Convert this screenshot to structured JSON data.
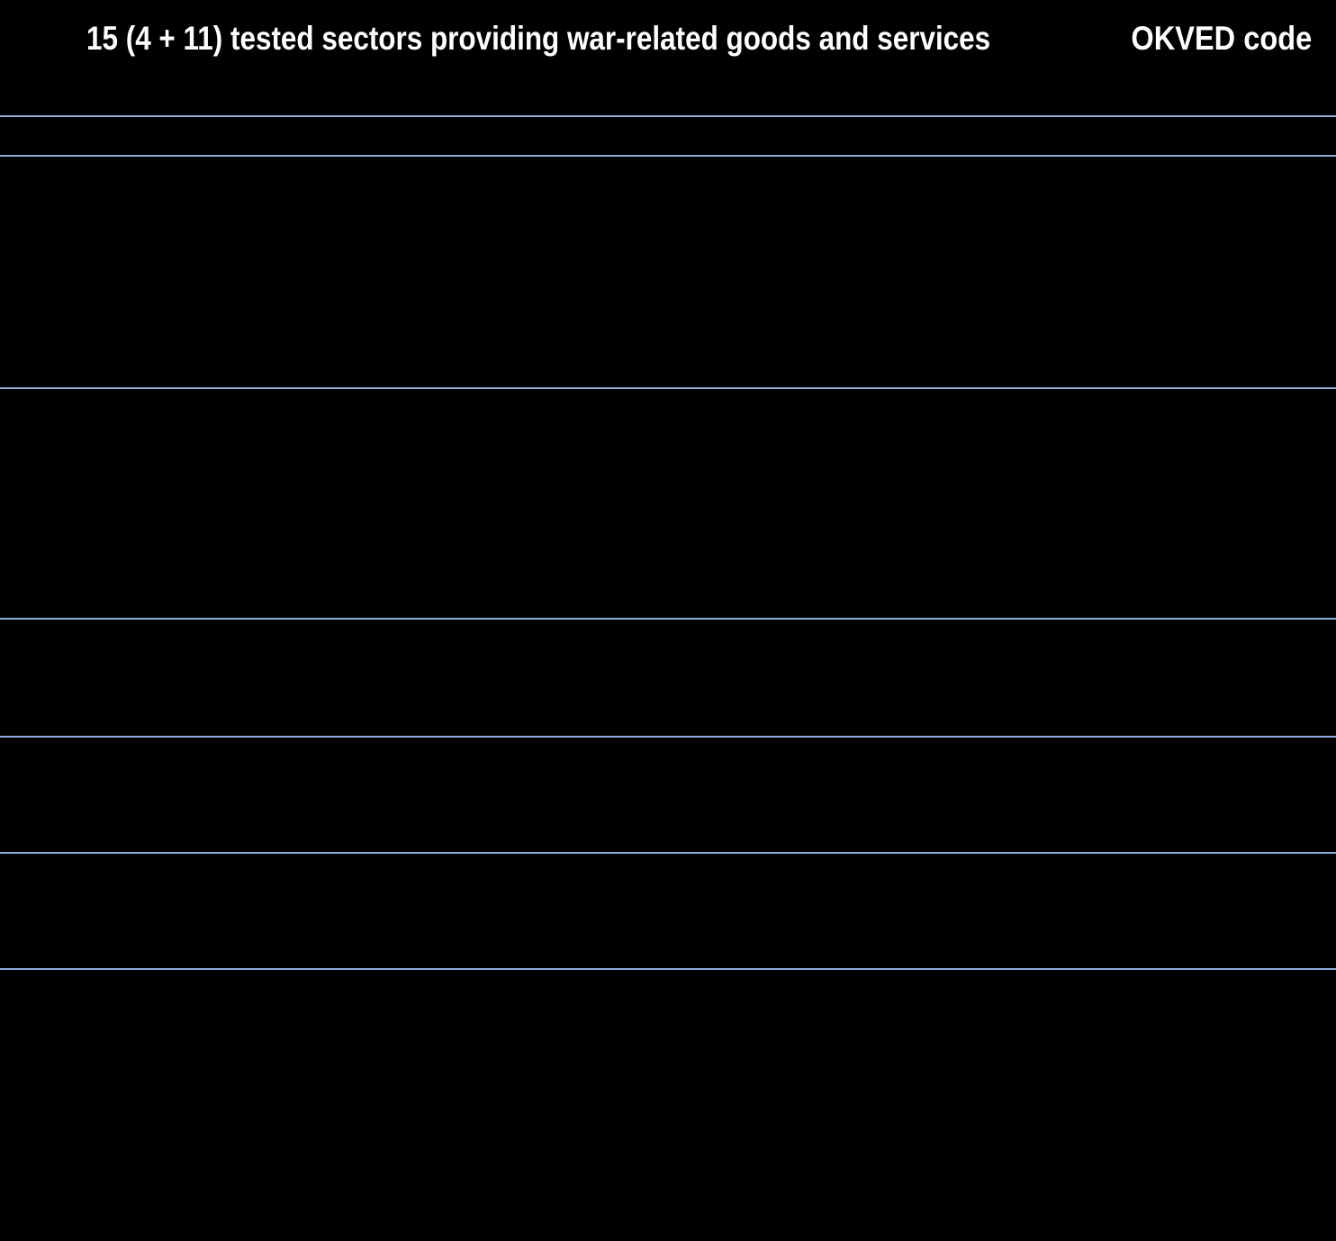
{
  "page": {
    "background_color": "#000000"
  },
  "header": {
    "title": "15 (4 + 11) tested sectors providing war-related goods and services",
    "code_column_label": "OKVED code",
    "text_color": "#ffffff"
  },
  "table": {
    "divider_color": "#8eaadb",
    "divider_y_positions": [
      129,
      173,
      431,
      687,
      818,
      947,
      1076
    ],
    "visible_cell_text": []
  }
}
